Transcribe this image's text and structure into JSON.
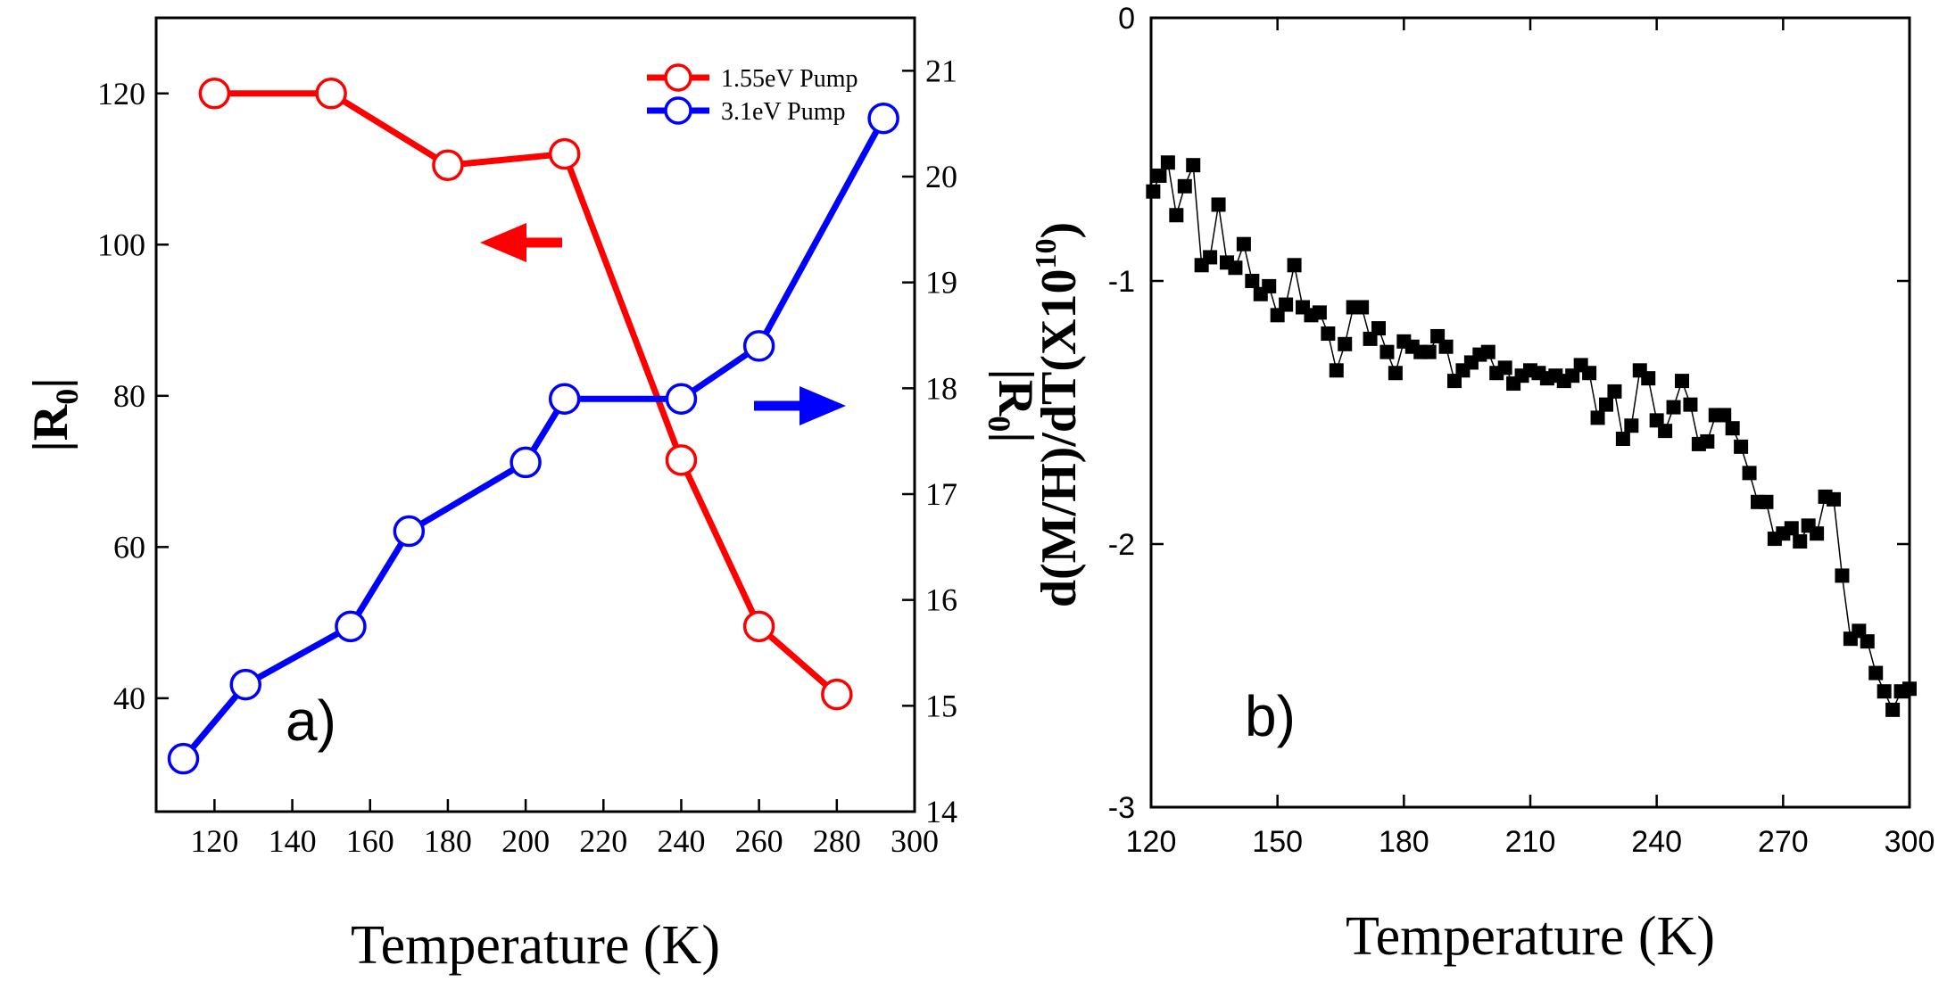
{
  "chart_data": [
    {
      "type": "line",
      "panel_label": "a)",
      "xlabel": "Temperature (K)",
      "ylabel_left": "|R",
      "ylabel_left_sub": "0",
      "ylabel_left_end": "|",
      "ylabel_right": "|R",
      "ylabel_right_sub": "0",
      "ylabel_right_end": "|",
      "xlim": [
        105,
        300
      ],
      "ylim_left": [
        25,
        130
      ],
      "ylim_right": [
        14,
        21.5
      ],
      "xticks": [
        120,
        140,
        160,
        180,
        200,
        220,
        240,
        260,
        280,
        300
      ],
      "yticks_left": [
        40,
        60,
        80,
        100,
        120
      ],
      "yticks_right": [
        14,
        15,
        16,
        17,
        18,
        19,
        20,
        21
      ],
      "legend_position": "top-right",
      "series": [
        {
          "name": "1.55eV Pump",
          "color": "#ff0000",
          "axis": "left",
          "x": [
            120,
            150,
            180,
            210,
            240,
            260,
            280
          ],
          "y": [
            120,
            120,
            110.5,
            112,
            71.5,
            49.5,
            40.5
          ]
        },
        {
          "name": "3.1eV Pump",
          "color": "#0000ff",
          "axis": "right",
          "x": [
            112,
            128,
            155,
            170,
            200,
            210,
            240,
            260,
            292
          ],
          "y": [
            14.5,
            15.2,
            15.75,
            16.65,
            17.3,
            17.9,
            17.9,
            18.4,
            20.55
          ]
        }
      ],
      "arrows": [
        {
          "direction": "left",
          "color": "#ff0000",
          "points_to": "left axis"
        },
        {
          "direction": "right",
          "color": "#0000ff",
          "points_to": "right axis"
        }
      ]
    },
    {
      "type": "scatter",
      "panel_label": "b)",
      "xlabel": "Temperature (K)",
      "ylabel": "d(M/H)/dT(X10",
      "ylabel_sup": "10",
      "ylabel_end": ")",
      "xlim": [
        120,
        300
      ],
      "ylim": [
        -3,
        0
      ],
      "xticks": [
        120,
        150,
        180,
        210,
        240,
        270,
        300
      ],
      "yticks": [
        0,
        -1,
        -2,
        -3
      ],
      "marker": "square",
      "color": "#000000",
      "series": [
        {
          "name": "d(M/H)/dT",
          "x": [
            120.5,
            122,
            124,
            126,
            128,
            130,
            132,
            134,
            136,
            138,
            140,
            142,
            144,
            146,
            148,
            150,
            152,
            154,
            156,
            158,
            160,
            162,
            164,
            166,
            168,
            170,
            172,
            174,
            176,
            178,
            180,
            182,
            184,
            186,
            188,
            190,
            192,
            194,
            196,
            198,
            200,
            202,
            204,
            206,
            208,
            210,
            212,
            214,
            216,
            218,
            220,
            222,
            224,
            226,
            228,
            230,
            232,
            234,
            236,
            238,
            240,
            242,
            244,
            246,
            248,
            250,
            252,
            254,
            256,
            258,
            260,
            262,
            264,
            266,
            268,
            270,
            272,
            274,
            276,
            278,
            280,
            282,
            284,
            286,
            288,
            290,
            292,
            294,
            296,
            298,
            300
          ],
          "y": [
            -0.66,
            -0.6,
            -0.55,
            -0.75,
            -0.64,
            -0.56,
            -0.94,
            -0.91,
            -0.71,
            -0.93,
            -0.95,
            -0.86,
            -1.0,
            -1.05,
            -1.02,
            -1.13,
            -1.09,
            -0.94,
            -1.1,
            -1.13,
            -1.12,
            -1.2,
            -1.34,
            -1.24,
            -1.1,
            -1.1,
            -1.22,
            -1.18,
            -1.27,
            -1.35,
            -1.23,
            -1.25,
            -1.27,
            -1.27,
            -1.21,
            -1.25,
            -1.38,
            -1.34,
            -1.31,
            -1.28,
            -1.27,
            -1.35,
            -1.33,
            -1.39,
            -1.36,
            -1.34,
            -1.35,
            -1.37,
            -1.36,
            -1.38,
            -1.36,
            -1.32,
            -1.35,
            -1.52,
            -1.47,
            -1.42,
            -1.6,
            -1.55,
            -1.34,
            -1.37,
            -1.53,
            -1.57,
            -1.48,
            -1.38,
            -1.47,
            -1.62,
            -1.61,
            -1.51,
            -1.51,
            -1.56,
            -1.63,
            -1.73,
            -1.84,
            -1.84,
            -1.98,
            -1.96,
            -1.94,
            -1.99,
            -1.93,
            -1.96,
            -1.82,
            -1.83,
            -2.12,
            -2.36,
            -2.33,
            -2.37,
            -2.49,
            -2.56,
            -2.63,
            -2.56,
            -2.55
          ]
        }
      ]
    }
  ]
}
